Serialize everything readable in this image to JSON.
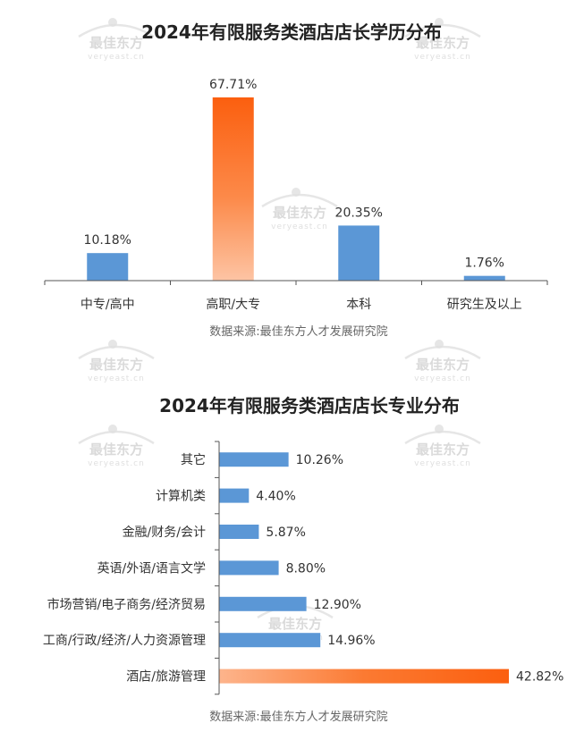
{
  "watermark": {
    "brand": "最佳东方",
    "site": "veryeast.cn"
  },
  "colors": {
    "bar_blue": "#5b97d6",
    "bar_orange_top": "#fb5f0f",
    "bar_orange_bottom": "#fdc4a4",
    "axis": "#555555"
  },
  "chart_data": [
    {
      "type": "bar",
      "orientation": "vertical",
      "title": "2024年有限服务类酒店店长学历分布",
      "categories": [
        "中专/高中",
        "高职/大专",
        "本科",
        "研究生及以上"
      ],
      "values": [
        10.18,
        67.71,
        20.35,
        1.76
      ],
      "value_labels": [
        "10.18%",
        "67.71%",
        "20.35%",
        "1.76%"
      ],
      "highlight_index": 1,
      "ylim": [
        0,
        70
      ],
      "grid": false,
      "source": "数据来源:最佳东方人才发展研究院"
    },
    {
      "type": "bar",
      "orientation": "horizontal",
      "title": "2024年有限服务类酒店店长专业分布",
      "categories": [
        "其它",
        "计算机类",
        "金融/财务/会计",
        "英语/外语/语言文学",
        "市场营销/电子商务/经济贸易",
        "工商/行政/经济/人力资源管理",
        "酒店/旅游管理"
      ],
      "values": [
        10.26,
        4.4,
        5.87,
        8.8,
        12.9,
        14.96,
        42.82
      ],
      "value_labels": [
        "10.26%",
        "4.40%",
        "5.87%",
        "8.80%",
        "12.90%",
        "14.96%",
        "42.82%"
      ],
      "highlight_index": 6,
      "xlim": [
        0,
        42.82
      ],
      "grid": false,
      "source": "数据来源:最佳东方人才发展研究院"
    }
  ]
}
